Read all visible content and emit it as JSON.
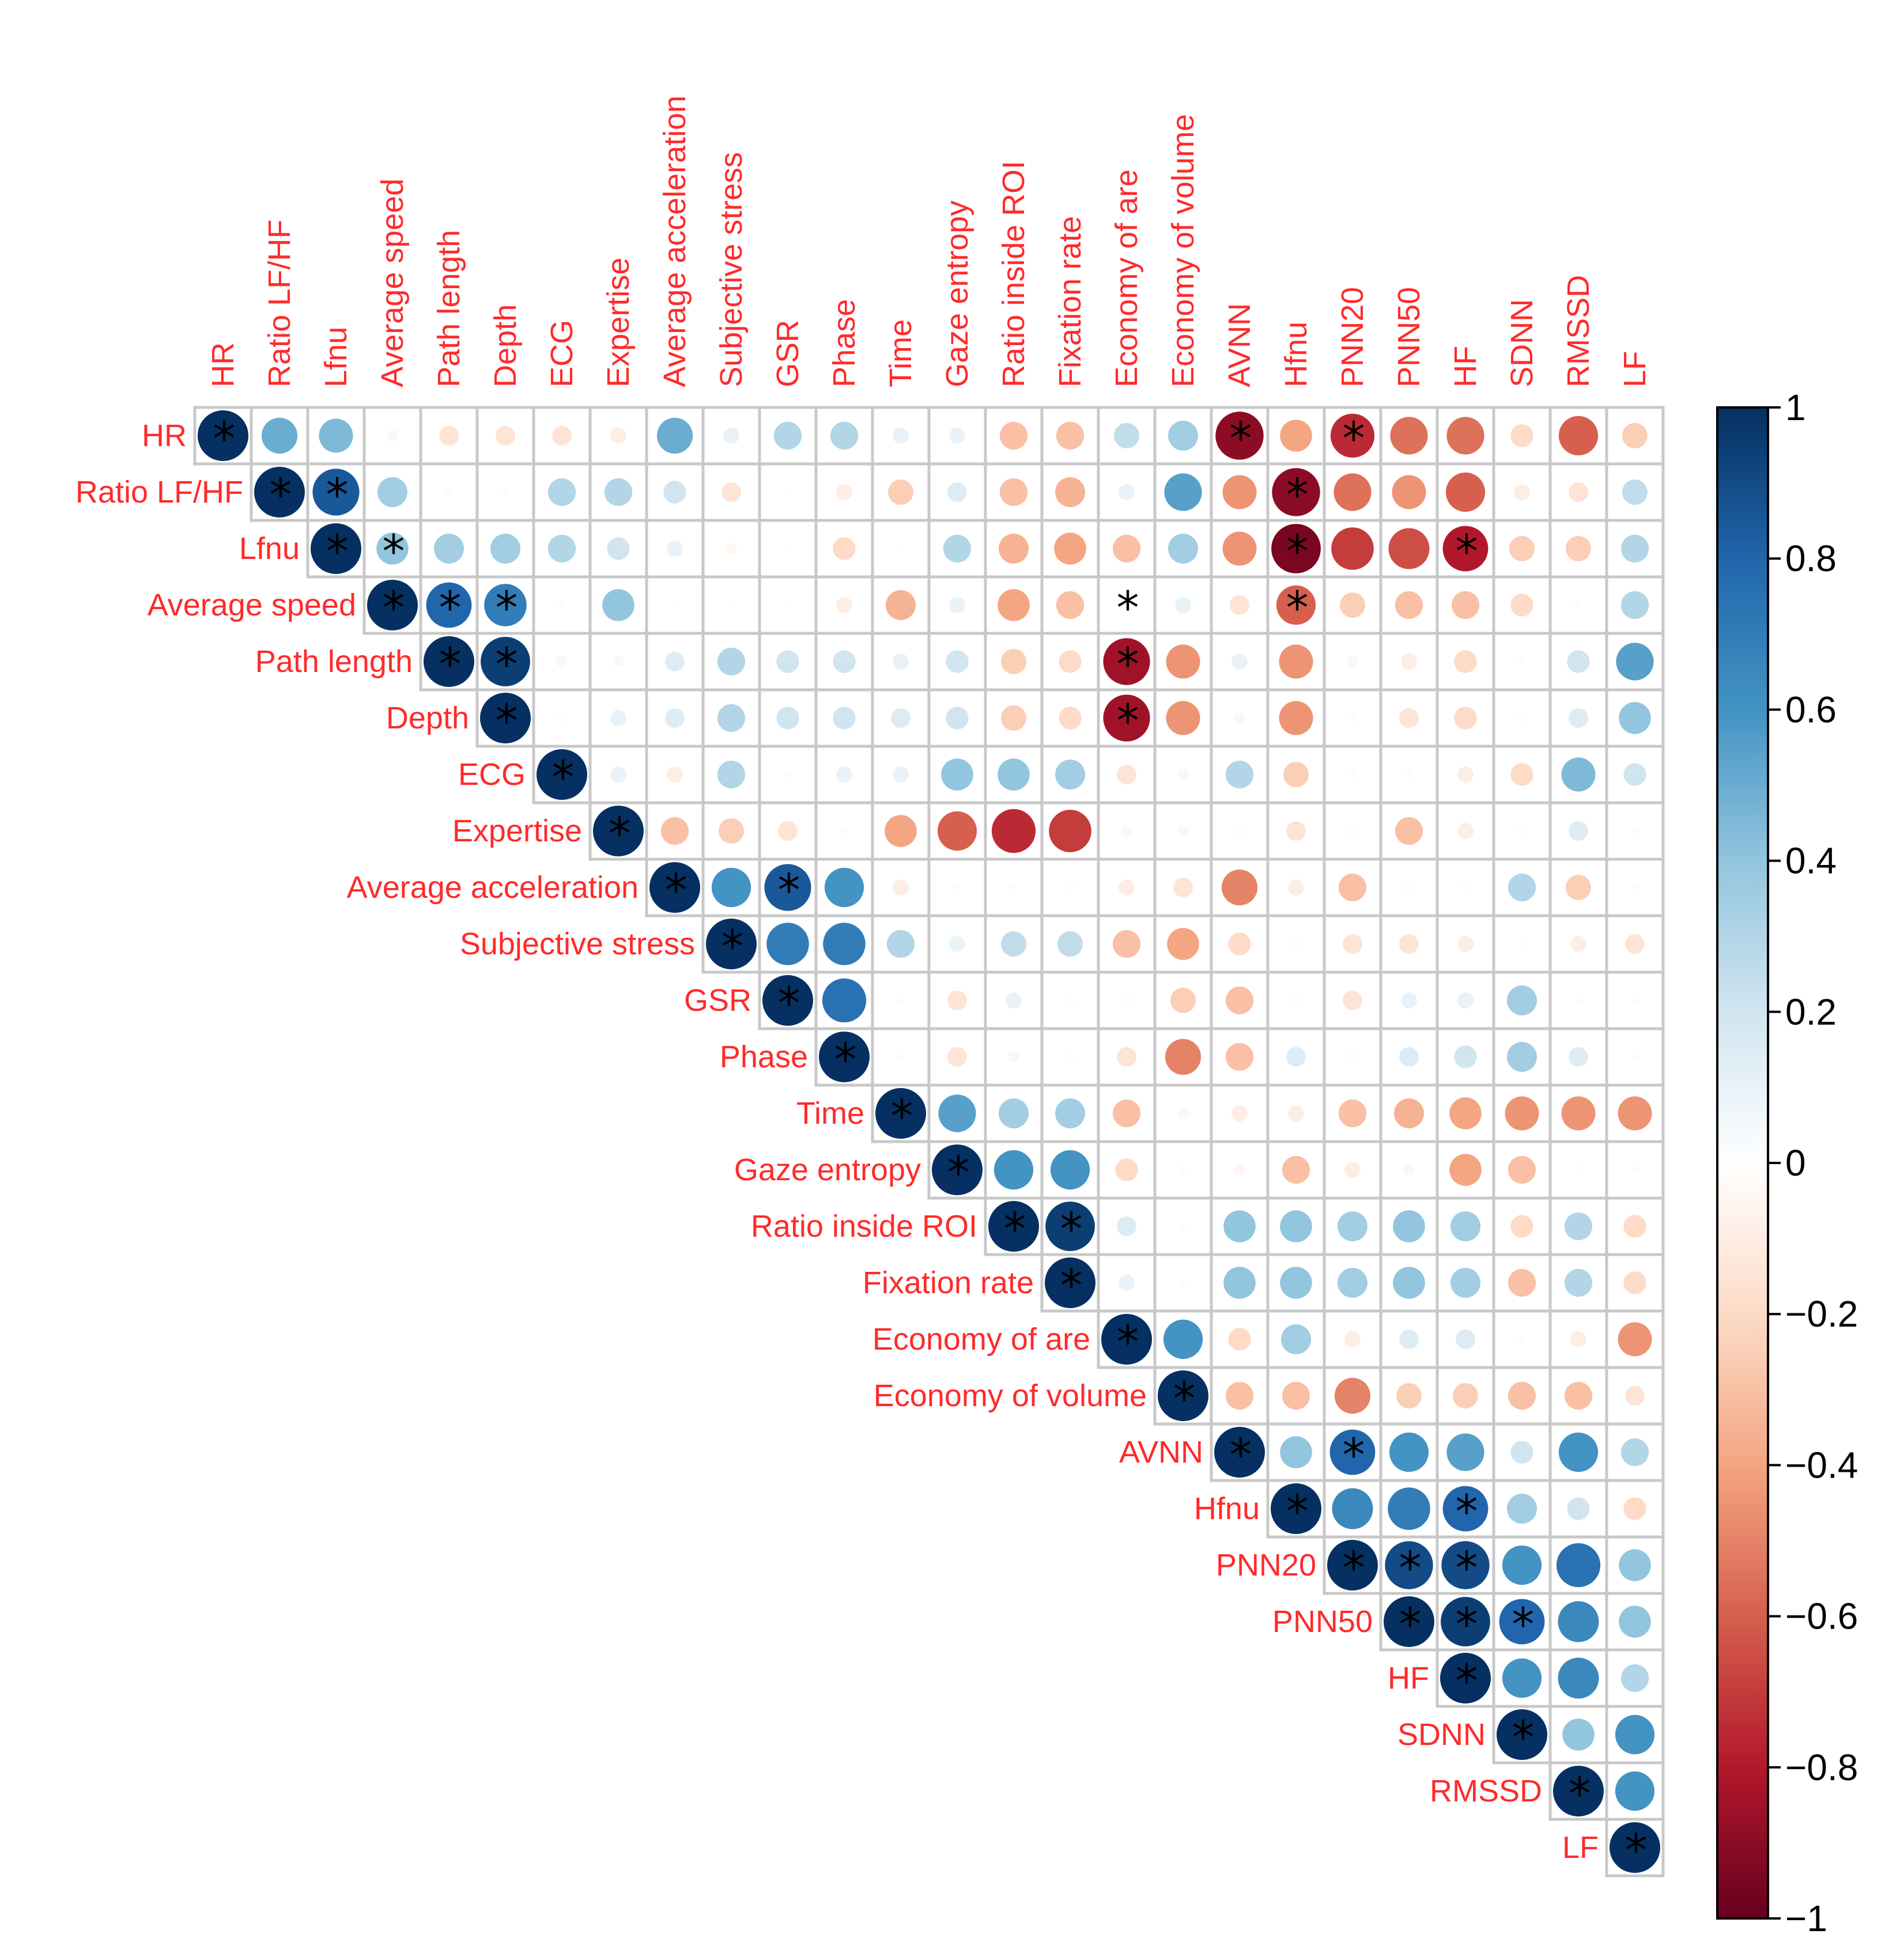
{
  "chart_data": {
    "type": "heatmap",
    "subtype": "correlation-matrix-upper",
    "variables": [
      "HR",
      "Ratio LF/HF",
      "Lfnu",
      "Average speed",
      "Path length",
      "Depth",
      "ECG",
      "Expertise",
      "Average acceleration",
      "Subjective stress",
      "GSR",
      "Phase",
      "Time",
      "Gaze entropy",
      "Ratio inside ROI",
      "Fixation rate",
      "Economy of are",
      "Economy of volume",
      "AVNN",
      "Hfnu",
      "PNN20",
      "PNN50",
      "HF",
      "SDNN",
      "RMSSD",
      "LF"
    ],
    "matrix": [
      [
        1,
        0.5,
        0.45,
        0.05,
        -0.15,
        -0.15,
        -0.15,
        -0.1,
        0.5,
        0.1,
        0.3,
        0.3,
        0.1,
        0.1,
        -0.3,
        -0.3,
        0.25,
        0.35,
        -0.9,
        -0.4,
        -0.75,
        -0.55,
        -0.55,
        -0.2,
        -0.6,
        -0.25
      ],
      [
        null,
        1,
        0.85,
        0.35,
        0.02,
        0.02,
        0.3,
        0.3,
        0.2,
        -0.15,
        0.02,
        -0.1,
        -0.25,
        0.15,
        -0.3,
        -0.35,
        0.1,
        0.55,
        -0.45,
        -0.9,
        -0.55,
        -0.45,
        -0.6,
        -0.1,
        -0.15,
        0.25
      ],
      [
        null,
        null,
        1,
        0.4,
        0.35,
        0.35,
        0.3,
        0.2,
        0.1,
        -0.05,
        0.02,
        -0.2,
        0.02,
        0.3,
        -0.35,
        -0.4,
        -0.3,
        0.35,
        -0.45,
        -0.95,
        -0.7,
        -0.65,
        -0.8,
        -0.25,
        -0.25,
        0.3
      ],
      [
        null,
        null,
        null,
        1,
        0.8,
        0.7,
        0.02,
        0.4,
        0.02,
        0.02,
        0.02,
        -0.1,
        -0.35,
        0.1,
        -0.4,
        -0.3,
        -0.02,
        0.1,
        -0.15,
        -0.6,
        -0.25,
        -0.3,
        -0.3,
        -0.2,
        0.02,
        0.3
      ],
      [
        null,
        null,
        null,
        null,
        1,
        0.95,
        0.05,
        0.05,
        0.15,
        0.3,
        0.2,
        0.2,
        0.1,
        0.2,
        -0.25,
        -0.2,
        -0.85,
        -0.45,
        0.1,
        -0.45,
        0.05,
        -0.1,
        -0.2,
        0.02,
        0.2,
        0.55
      ],
      [
        null,
        null,
        null,
        null,
        null,
        1,
        0.02,
        0.1,
        0.15,
        0.3,
        0.2,
        0.2,
        0.15,
        0.2,
        -0.25,
        -0.2,
        -0.85,
        -0.45,
        0.05,
        -0.45,
        0.02,
        -0.15,
        -0.2,
        0.02,
        0.15,
        0.4
      ],
      [
        null,
        null,
        null,
        null,
        null,
        null,
        1,
        0.1,
        -0.1,
        0.3,
        0.02,
        0.1,
        0.1,
        0.4,
        0.4,
        0.35,
        -0.15,
        -0.05,
        0.3,
        -0.25,
        0.02,
        0.02,
        -0.1,
        -0.2,
        0.45,
        0.2
      ],
      [
        null,
        null,
        null,
        null,
        null,
        null,
        null,
        1,
        -0.3,
        -0.25,
        -0.15,
        0.02,
        -0.4,
        -0.6,
        -0.75,
        -0.7,
        0.05,
        -0.05,
        0.02,
        -0.15,
        0.02,
        -0.3,
        -0.1,
        0.02,
        0.15,
        0.02
      ],
      [
        null,
        null,
        null,
        null,
        null,
        null,
        null,
        null,
        1,
        0.6,
        0.85,
        0.6,
        -0.1,
        0.02,
        0.02,
        0.02,
        -0.1,
        -0.15,
        -0.5,
        -0.1,
        -0.3,
        0.02,
        0.02,
        0.3,
        -0.25,
        0.02
      ],
      [
        null,
        null,
        null,
        null,
        null,
        null,
        null,
        null,
        null,
        1,
        0.7,
        0.7,
        0.3,
        0.1,
        0.25,
        0.25,
        -0.3,
        -0.4,
        -0.2,
        0.02,
        -0.15,
        -0.15,
        -0.1,
        0.02,
        -0.1,
        -0.15
      ],
      [
        null,
        null,
        null,
        null,
        null,
        null,
        null,
        null,
        null,
        null,
        1,
        0.75,
        0.02,
        -0.15,
        0.1,
        0.02,
        0.02,
        -0.25,
        -0.3,
        0.02,
        -0.15,
        0.1,
        0.1,
        0.35,
        0.02,
        0.02
      ],
      [
        null,
        null,
        null,
        null,
        null,
        null,
        null,
        null,
        null,
        null,
        null,
        1,
        0.02,
        -0.15,
        0.05,
        0.02,
        -0.15,
        -0.5,
        -0.3,
        0.15,
        0.02,
        0.15,
        0.2,
        0.35,
        0.15,
        0.02
      ],
      [
        null,
        null,
        null,
        null,
        null,
        null,
        null,
        null,
        null,
        null,
        null,
        null,
        1,
        0.55,
        0.35,
        0.35,
        -0.3,
        -0.05,
        -0.1,
        -0.1,
        -0.3,
        -0.35,
        -0.4,
        -0.45,
        -0.45,
        -0.45
      ],
      [
        null,
        null,
        null,
        null,
        null,
        null,
        null,
        null,
        null,
        null,
        null,
        null,
        null,
        1,
        0.6,
        0.6,
        -0.2,
        0.02,
        -0.05,
        -0.3,
        -0.1,
        -0.05,
        -0.4,
        -0.3,
        0.02,
        0.02
      ],
      [
        null,
        null,
        null,
        null,
        null,
        null,
        null,
        null,
        null,
        null,
        null,
        null,
        null,
        null,
        1,
        0.95,
        0.15,
        0.02,
        0.4,
        0.4,
        0.35,
        0.4,
        0.35,
        -0.2,
        0.3,
        -0.2
      ],
      [
        null,
        null,
        null,
        null,
        null,
        null,
        null,
        null,
        null,
        null,
        null,
        null,
        null,
        null,
        null,
        1,
        0.1,
        0.02,
        0.4,
        0.4,
        0.35,
        0.4,
        0.35,
        -0.3,
        0.3,
        -0.2
      ],
      [
        null,
        null,
        null,
        null,
        null,
        null,
        null,
        null,
        null,
        null,
        null,
        null,
        null,
        null,
        null,
        null,
        1,
        0.6,
        -0.2,
        0.35,
        -0.1,
        0.15,
        0.15,
        0.02,
        -0.1,
        -0.45
      ],
      [
        null,
        null,
        null,
        null,
        null,
        null,
        null,
        null,
        null,
        null,
        null,
        null,
        null,
        null,
        null,
        null,
        null,
        1,
        -0.3,
        -0.3,
        -0.5,
        -0.25,
        -0.25,
        -0.3,
        -0.3,
        -0.15
      ],
      [
        null,
        null,
        null,
        null,
        null,
        null,
        null,
        null,
        null,
        null,
        null,
        null,
        null,
        null,
        null,
        null,
        null,
        null,
        1,
        0.4,
        0.8,
        0.6,
        0.55,
        0.2,
        0.6,
        0.3
      ],
      [
        null,
        null,
        null,
        null,
        null,
        null,
        null,
        null,
        null,
        null,
        null,
        null,
        null,
        null,
        null,
        null,
        null,
        null,
        null,
        1,
        0.65,
        0.7,
        0.8,
        0.35,
        0.2,
        -0.2
      ],
      [
        null,
        null,
        null,
        null,
        null,
        null,
        null,
        null,
        null,
        null,
        null,
        null,
        null,
        null,
        null,
        null,
        null,
        null,
        null,
        null,
        1,
        0.9,
        0.9,
        0.6,
        0.75,
        0.4
      ],
      [
        null,
        null,
        null,
        null,
        null,
        null,
        null,
        null,
        null,
        null,
        null,
        null,
        null,
        null,
        null,
        null,
        null,
        null,
        null,
        null,
        null,
        1,
        0.95,
        0.8,
        0.65,
        0.4
      ],
      [
        null,
        null,
        null,
        null,
        null,
        null,
        null,
        null,
        null,
        null,
        null,
        null,
        null,
        null,
        null,
        null,
        null,
        null,
        null,
        null,
        null,
        null,
        1,
        0.6,
        0.65,
        0.3
      ],
      [
        null,
        null,
        null,
        null,
        null,
        null,
        null,
        null,
        null,
        null,
        null,
        null,
        null,
        null,
        null,
        null,
        null,
        null,
        null,
        null,
        null,
        null,
        null,
        1,
        0.4,
        0.6
      ],
      [
        null,
        null,
        null,
        null,
        null,
        null,
        null,
        null,
        null,
        null,
        null,
        null,
        null,
        null,
        null,
        null,
        null,
        null,
        null,
        null,
        null,
        null,
        null,
        null,
        1,
        0.6
      ],
      [
        null,
        null,
        null,
        null,
        null,
        null,
        null,
        null,
        null,
        null,
        null,
        null,
        null,
        null,
        null,
        null,
        null,
        null,
        null,
        null,
        null,
        null,
        null,
        null,
        null,
        1
      ]
    ],
    "significant": [
      [
        0,
        0
      ],
      [
        0,
        18
      ],
      [
        0,
        20
      ],
      [
        1,
        1
      ],
      [
        1,
        2
      ],
      [
        1,
        19
      ],
      [
        2,
        2
      ],
      [
        2,
        3
      ],
      [
        2,
        19
      ],
      [
        2,
        22
      ],
      [
        3,
        3
      ],
      [
        3,
        4
      ],
      [
        3,
        5
      ],
      [
        3,
        16
      ],
      [
        3,
        19
      ],
      [
        4,
        4
      ],
      [
        4,
        5
      ],
      [
        4,
        16
      ],
      [
        5,
        5
      ],
      [
        5,
        16
      ],
      [
        6,
        6
      ],
      [
        7,
        7
      ],
      [
        8,
        8
      ],
      [
        8,
        10
      ],
      [
        9,
        9
      ],
      [
        10,
        10
      ],
      [
        11,
        11
      ],
      [
        12,
        12
      ],
      [
        13,
        13
      ],
      [
        14,
        14
      ],
      [
        14,
        15
      ],
      [
        15,
        15
      ],
      [
        16,
        16
      ],
      [
        17,
        17
      ],
      [
        18,
        18
      ],
      [
        18,
        20
      ],
      [
        19,
        19
      ],
      [
        19,
        22
      ],
      [
        20,
        20
      ],
      [
        20,
        21
      ],
      [
        20,
        22
      ],
      [
        21,
        21
      ],
      [
        21,
        22
      ],
      [
        21,
        23
      ],
      [
        22,
        22
      ],
      [
        23,
        23
      ],
      [
        24,
        24
      ],
      [
        25,
        25
      ]
    ],
    "significance_marker": "*",
    "colorbar": {
      "range": [
        -1,
        1
      ],
      "ticks": [
        "1",
        "0.8",
        "0.6",
        "0.4",
        "0.2",
        "0",
        "−0.2",
        "−0.4",
        "−0.6",
        "−0.8",
        "−1"
      ],
      "colors": {
        "neg1": "#67001f",
        "neg06": "#d6604d",
        "neg03": "#f4a582",
        "zero": "#ffffff",
        "pos03": "#92c5de",
        "pos06": "#4393c3",
        "pos1": "#053061"
      }
    },
    "label_color": "#ff2a2a"
  }
}
